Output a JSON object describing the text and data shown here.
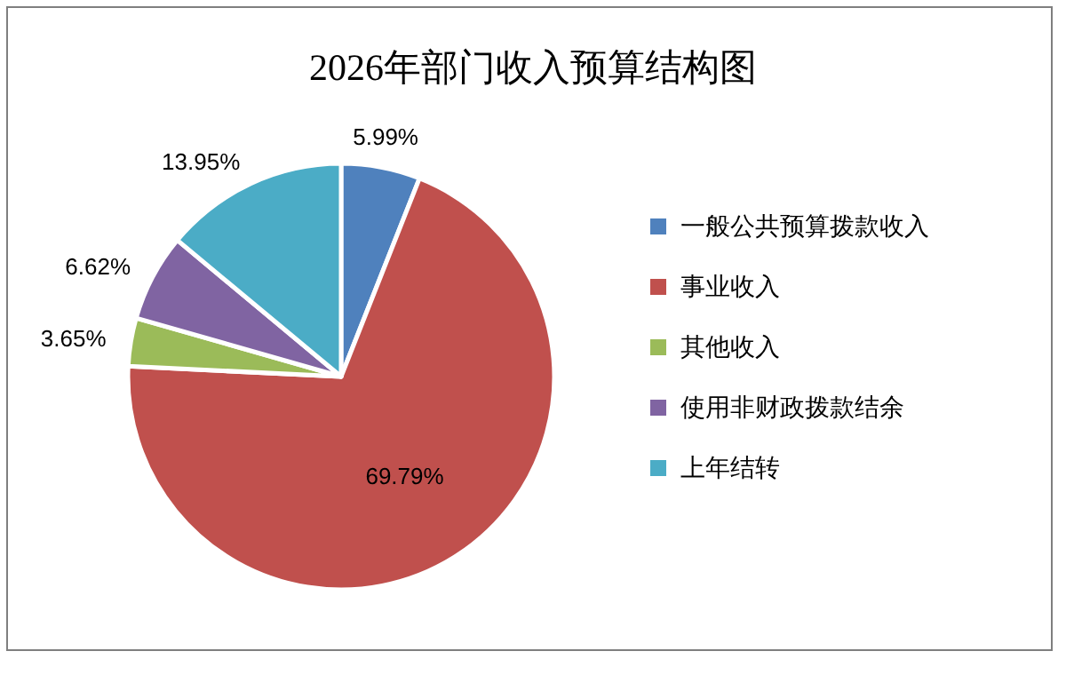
{
  "chart_data": {
    "type": "pie",
    "title": "2026年部门收入预算结构图",
    "categories": [
      "一般公共预算拨款收入",
      "事业收入",
      "其他收入",
      "使用非财政拨款结余",
      "上年结转"
    ],
    "values": [
      5.99,
      69.79,
      3.65,
      6.62,
      13.95
    ],
    "colors": [
      "#4f81bd",
      "#c0504d",
      "#9bbb59",
      "#8064a2",
      "#4bacc6"
    ],
    "value_labels": [
      "5.99%",
      "69.79%",
      "3.65%",
      "6.62%",
      "13.95%"
    ],
    "legend": "right"
  }
}
